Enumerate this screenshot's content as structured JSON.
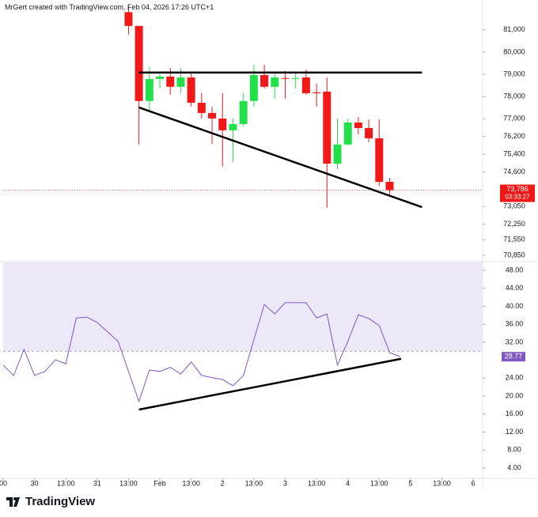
{
  "header": "MrGert created with TradingView.com, Feb 04, 2026 17:26 UTC+1",
  "footer": "TradingView",
  "chart_data": [
    {
      "type": "candlestick",
      "up_color": "#22e04a",
      "down_color": "#f21818",
      "x": [
        12,
        13,
        14,
        15,
        16,
        17,
        18,
        19,
        20,
        21,
        22,
        23,
        24,
        25,
        26,
        27,
        28,
        29,
        30,
        31,
        32,
        33,
        34,
        35,
        36,
        37
      ],
      "open": [
        81800,
        81180,
        77800,
        78790,
        78900,
        78440,
        78860,
        77720,
        77260,
        77010,
        76480,
        76760,
        77800,
        78970,
        78440,
        78830,
        78800,
        78860,
        78190,
        78220,
        74980,
        75840,
        76830,
        76580,
        76120,
        74160
      ],
      "high": [
        82100,
        81180,
        79330,
        79080,
        79290,
        79290,
        79080,
        78150,
        77550,
        78150,
        77010,
        78150,
        79430,
        79430,
        79080,
        79150,
        79080,
        79220,
        78580,
        78860,
        77010,
        77010,
        77080,
        76970,
        76970,
        74330
      ],
      "low": [
        80790,
        75840,
        77300,
        78360,
        78080,
        78150,
        77550,
        77010,
        75870,
        74840,
        75050,
        76650,
        77550,
        78360,
        77900,
        77900,
        78360,
        78080,
        77550,
        72990,
        74730,
        75800,
        76300,
        75940,
        73980,
        73520
      ],
      "close": [
        81180,
        77800,
        78790,
        78900,
        78440,
        78860,
        77720,
        77260,
        77010,
        76480,
        76760,
        77800,
        78970,
        78440,
        78860,
        78800,
        78830,
        78150,
        78150,
        74980,
        75840,
        76830,
        76580,
        76120,
        74160,
        73786
      ],
      "xlim": [
        0,
        45.9
      ],
      "ylim": [
        70600,
        82170
      ],
      "yticks": [
        {
          "value": 81000,
          "label": "81,000"
        },
        {
          "value": 80000,
          "label": "80,000"
        },
        {
          "value": 79000,
          "label": "79,000"
        },
        {
          "value": 78000,
          "label": "78,000"
        },
        {
          "value": 77000,
          "label": "77,000"
        },
        {
          "value": 76200,
          "label": "76,200"
        },
        {
          "value": 75400,
          "label": "75,400"
        },
        {
          "value": 74600,
          "label": "74,600"
        },
        {
          "value": 73050,
          "label": "73,050"
        },
        {
          "value": 72250,
          "label": "72,250"
        },
        {
          "value": 71550,
          "label": "71,550"
        },
        {
          "value": 70850,
          "label": "70,850"
        }
      ],
      "last_price": {
        "value": 73786,
        "label": "73,786"
      },
      "countdown": "03:33:27",
      "trendlines": [
        {
          "x": [
            13,
            40.1
          ],
          "y": [
            79080,
            79080
          ]
        },
        {
          "x": [
            13,
            40.1
          ],
          "y": [
            77510,
            73020
          ]
        }
      ]
    },
    {
      "type": "line",
      "color": "#7e57c2",
      "x": [
        0,
        1,
        2,
        3,
        4,
        5,
        6,
        7,
        8,
        9,
        10,
        11,
        12,
        13,
        14,
        15,
        16,
        17,
        18,
        19,
        20,
        21,
        22,
        23,
        24,
        25,
        26,
        27,
        28,
        29,
        30,
        31,
        32,
        33,
        34,
        35,
        36,
        37,
        38
      ],
      "values": [
        26.9,
        24.6,
        30.4,
        24.6,
        25.5,
        28.1,
        27.2,
        37.4,
        37.6,
        36.4,
        34.3,
        32.2,
        25.5,
        18.8,
        25.8,
        25.5,
        26.4,
        24.9,
        27.6,
        24.6,
        24.1,
        23.7,
        22.3,
        24.6,
        32.5,
        40.4,
        38.3,
        40.8,
        40.8,
        40.8,
        37.4,
        38.3,
        26.9,
        32.2,
        38.1,
        37.3,
        35.7,
        29.7,
        28.77
      ],
      "value_labels": {
        "last": "28.77"
      },
      "band": [
        30,
        70
      ],
      "band_color": "#ece8f8",
      "xlim": [
        0,
        45.9
      ],
      "ylim": [
        1.7,
        49.76
      ],
      "yticks": [
        {
          "value": 48,
          "label": "48.00"
        },
        {
          "value": 44,
          "label": "44.00"
        },
        {
          "value": 40,
          "label": "40.00"
        },
        {
          "value": 36,
          "label": "36.00"
        },
        {
          "value": 32,
          "label": "32.00"
        },
        {
          "value": 24,
          "label": "24.00"
        },
        {
          "value": 20,
          "label": "20.00"
        },
        {
          "value": 16,
          "label": "16.00"
        },
        {
          "value": 12,
          "label": "12.00"
        },
        {
          "value": 8,
          "label": "8.00"
        },
        {
          "value": 4,
          "label": "4.00"
        }
      ],
      "xticks": [
        {
          "value": 0,
          "label": "00"
        },
        {
          "value": 3,
          "label": "30"
        },
        {
          "value": 6,
          "label": "13:00"
        },
        {
          "value": 9,
          "label": "31"
        },
        {
          "value": 12,
          "label": "13:00"
        },
        {
          "value": 15,
          "label": "Feb"
        },
        {
          "value": 18,
          "label": "13:00"
        },
        {
          "value": 21,
          "label": "2"
        },
        {
          "value": 24,
          "label": "13:00"
        },
        {
          "value": 27,
          "label": "3"
        },
        {
          "value": 30,
          "label": "13:00"
        },
        {
          "value": 33,
          "label": "4"
        },
        {
          "value": 36,
          "label": "13:00"
        },
        {
          "value": 39,
          "label": "5"
        },
        {
          "value": 42,
          "label": "13:00"
        },
        {
          "value": 45,
          "label": "6"
        }
      ],
      "trendlines": [
        {
          "x": [
            13,
            38.1
          ],
          "y": [
            17.0,
            28.3
          ]
        }
      ]
    }
  ]
}
